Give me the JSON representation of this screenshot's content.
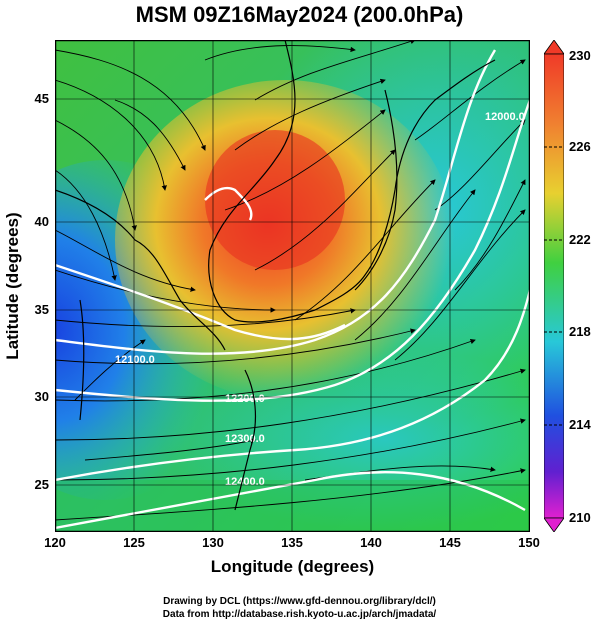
{
  "title": "MSM 09Z16May2024 (200.0hPa)",
  "x_axis": {
    "label": "Longitude (degrees)",
    "ticks": [
      "120",
      "125",
      "130",
      "135",
      "140",
      "145",
      "150"
    ]
  },
  "y_axis": {
    "label": "Latitude  (degrees)",
    "ticks": [
      "25",
      "30",
      "35",
      "40",
      "45"
    ]
  },
  "colorbar": {
    "ticks": [
      "230",
      "226",
      "222",
      "218",
      "214",
      "210"
    ],
    "min": 210,
    "max": 230
  },
  "contour_labels": [
    "12100.0",
    "12200.0",
    "12300.0",
    "12400.0",
    "12000.0"
  ],
  "credits": {
    "line1": "Drawing by DCL (https://www.gfd-dennou.org/library/dcl/)",
    "line2": "Data from http://database.rish.kyoto-u.ac.jp/arch/jmadata/"
  }
}
